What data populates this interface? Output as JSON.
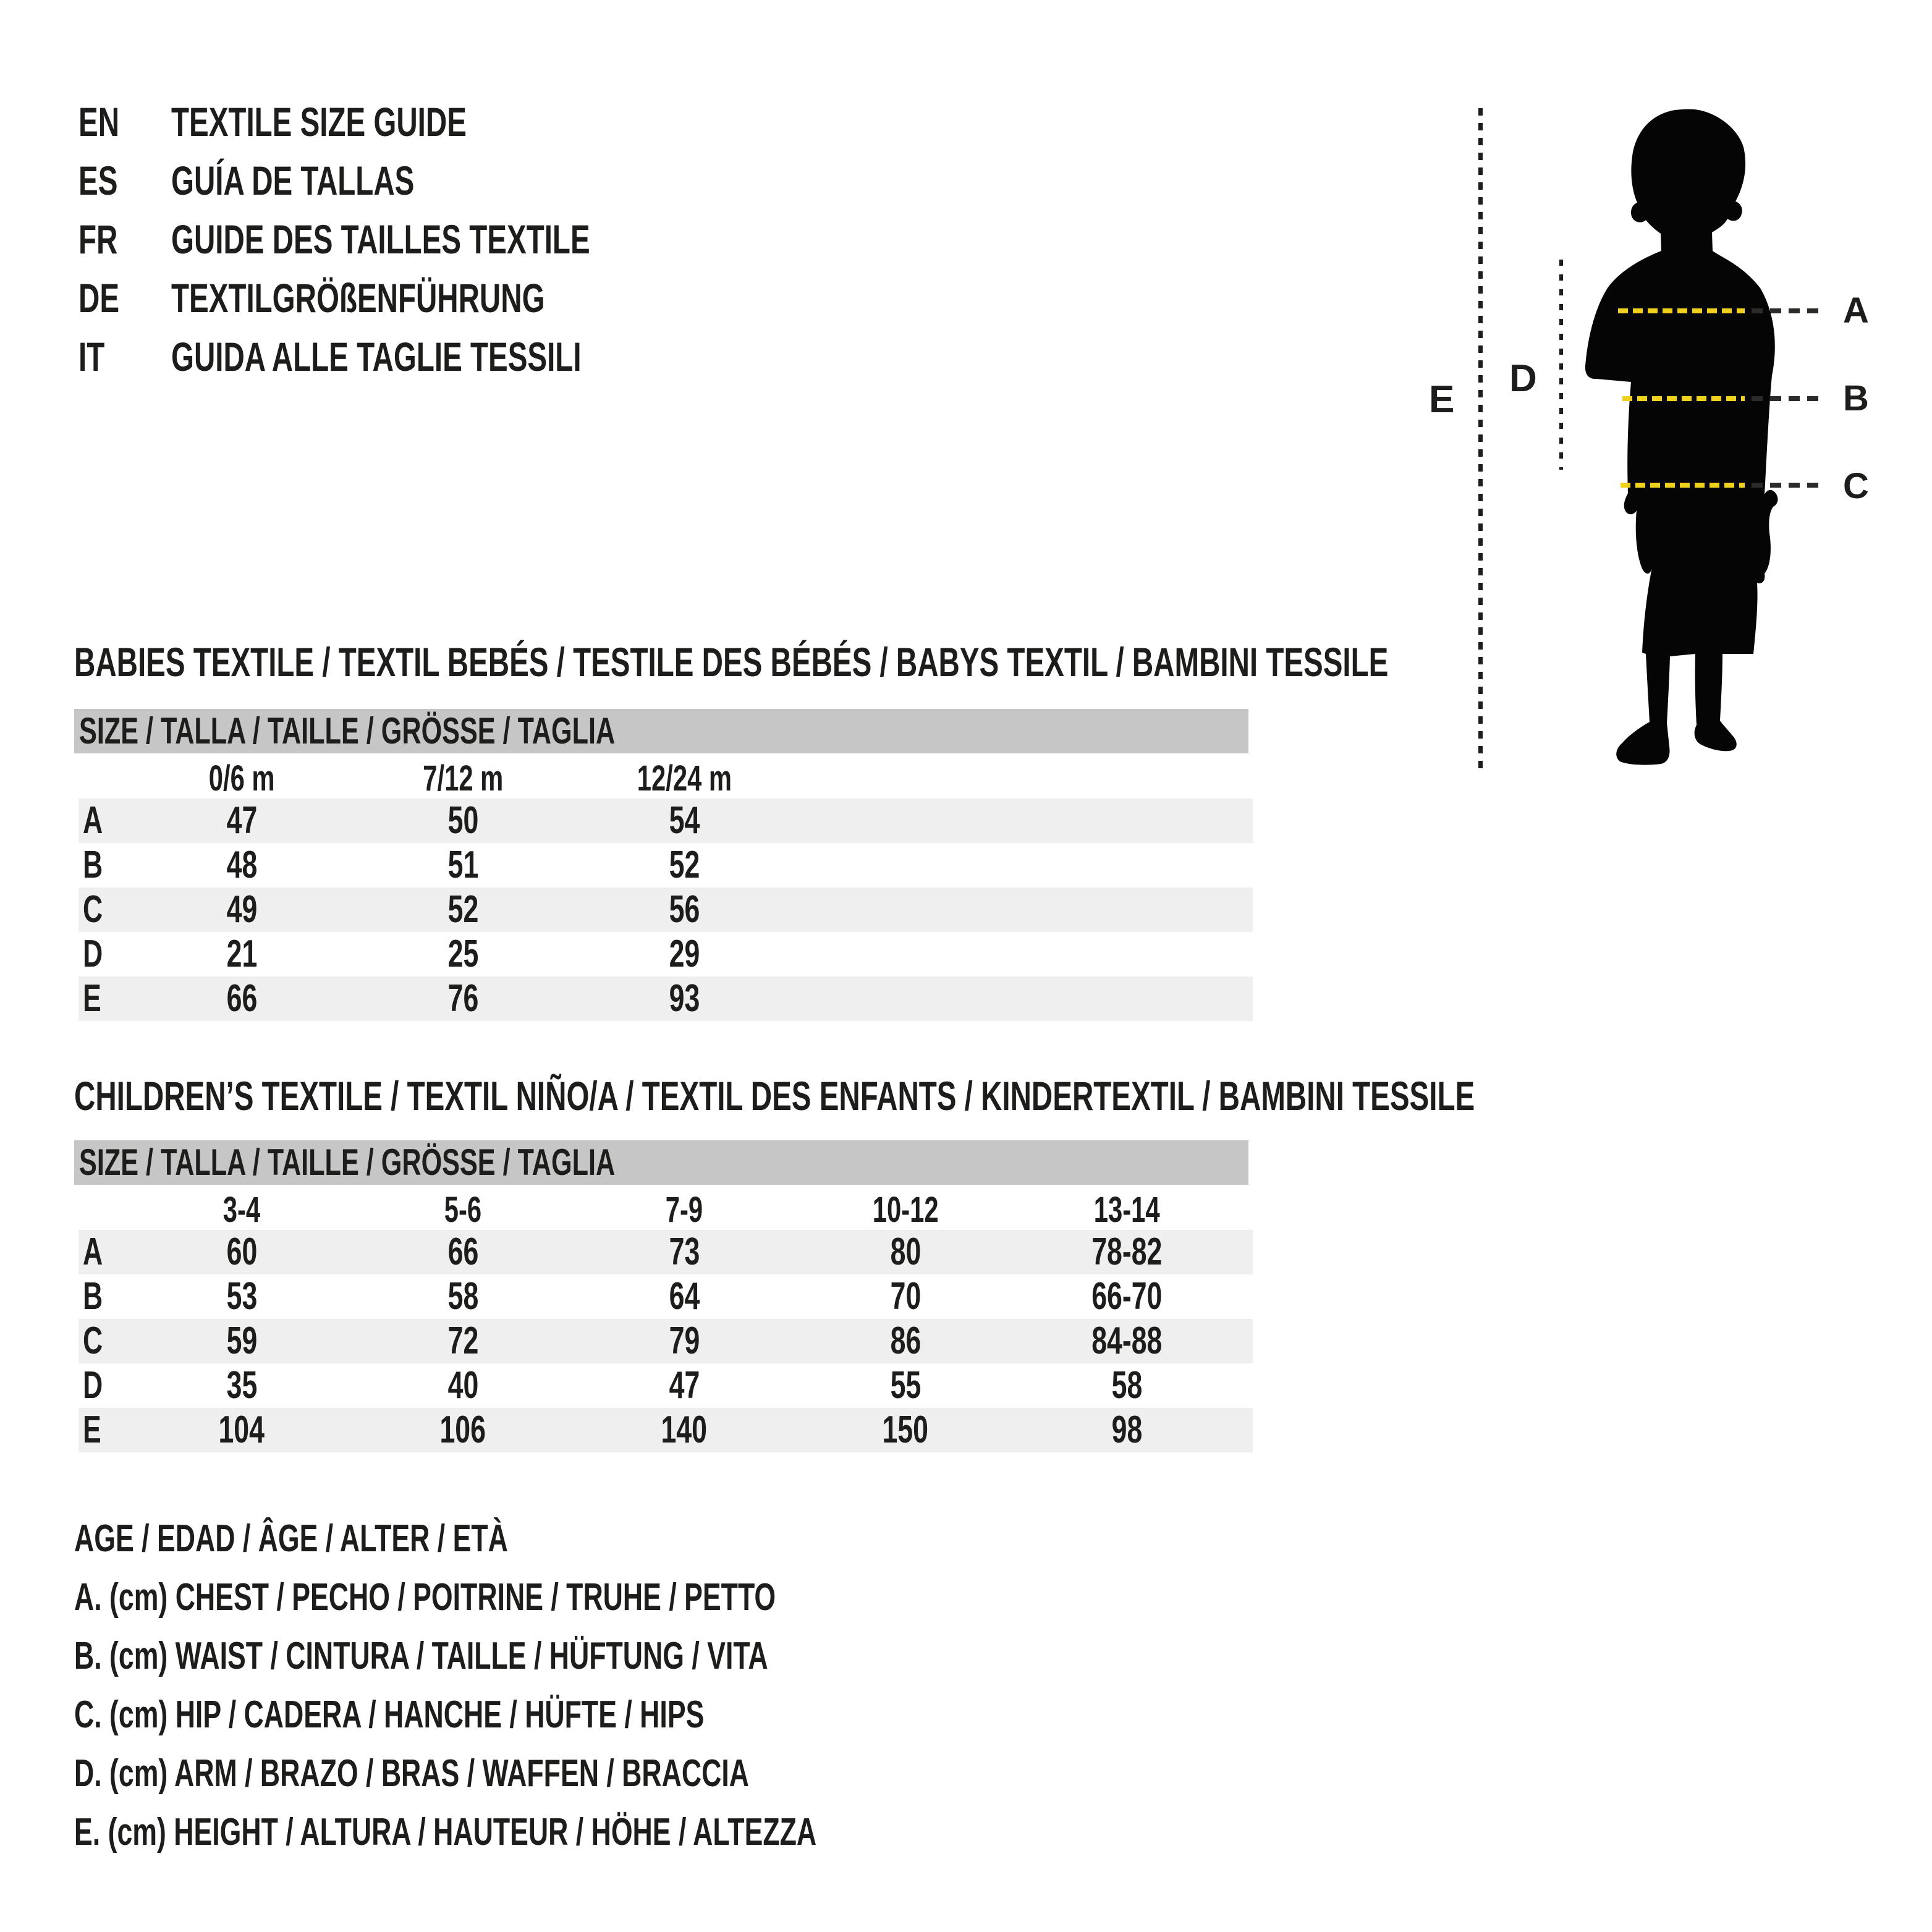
{
  "page": {
    "background": "#ffffff",
    "text_color": "#1d1d1b",
    "accent_yellow": "#efd11e",
    "header_bar_gray": "#c6c6c6",
    "row_band_gray": "#efefef",
    "silhouette_black": "#050505"
  },
  "languages": {
    "items": [
      {
        "code": "EN",
        "title": "TEXTILE SIZE GUIDE"
      },
      {
        "code": "ES",
        "title": "GUÍA DE TALLAS"
      },
      {
        "code": "FR",
        "title": "GUIDE DES TAILLES TEXTILE"
      },
      {
        "code": "DE",
        "title": "TEXTILGRÖßENFÜHRUNG"
      },
      {
        "code": "IT",
        "title": "GUIDA ALLE TAGLIE TESSILI"
      }
    ]
  },
  "figure": {
    "icon": "child-silhouette",
    "label_a": "A",
    "label_b": "B",
    "label_c": "C",
    "label_d": "D",
    "label_e": "E"
  },
  "babies_table": {
    "section_title": "BABIES TEXTILE / TEXTIL BEBÉS / TESTILE DES BÉBÉS / BABYS TEXTIL / BAMBINI TESSILE",
    "size_header": "SIZE / TALLA / TAILLE / GRÖSSE / TAGLIA",
    "columns": [
      "0/6 m",
      "7/12 m",
      "12/24 m"
    ],
    "rows": [
      {
        "label": "A",
        "values": [
          "47",
          "50",
          "54"
        ]
      },
      {
        "label": "B",
        "values": [
          "48",
          "51",
          "52"
        ]
      },
      {
        "label": "C",
        "values": [
          "49",
          "52",
          "56"
        ]
      },
      {
        "label": "D",
        "values": [
          "21",
          "25",
          "29"
        ]
      },
      {
        "label": "E",
        "values": [
          "66",
          "76",
          "93"
        ]
      }
    ]
  },
  "children_table": {
    "section_title": "CHILDREN’S TEXTILE / TEXTIL NIÑO/A / TEXTIL DES ENFANTS / KINDERTEXTIL / BAMBINI TESSILE",
    "size_header": "SIZE / TALLA / TAILLE / GRÖSSE / TAGLIA",
    "columns": [
      "3-4",
      "5-6",
      "7-9",
      "10-12",
      "13-14"
    ],
    "rows": [
      {
        "label": "A",
        "values": [
          "60",
          "66",
          "73",
          "80",
          "78-82"
        ]
      },
      {
        "label": "B",
        "values": [
          "53",
          "58",
          "64",
          "70",
          "66-70"
        ]
      },
      {
        "label": "C",
        "values": [
          "59",
          "72",
          "79",
          "86",
          "84-88"
        ]
      },
      {
        "label": "D",
        "values": [
          "35",
          "40",
          "47",
          "55",
          "58"
        ]
      },
      {
        "label": "E",
        "values": [
          "104",
          "106",
          "140",
          "150",
          "98"
        ]
      }
    ]
  },
  "legend": {
    "lines": [
      "AGE / EDAD / ÂGE / ALTER / ETÀ",
      "A. (cm) CHEST / PECHO / POITRINE / TRUHE / PETTO",
      "B. (cm) WAIST / CINTURA / TAILLE / HÜFTUNG / VITA",
      "C. (cm) HIP / CADERA / HANCHE / HÜFTE / HIPS",
      "D. (cm) ARM / BRAZO / BRAS / WAFFEN / BRACCIA",
      "E. (cm) HEIGHT / ALTURA / HAUTEUR / HÖHE / ALTEZZA"
    ]
  }
}
